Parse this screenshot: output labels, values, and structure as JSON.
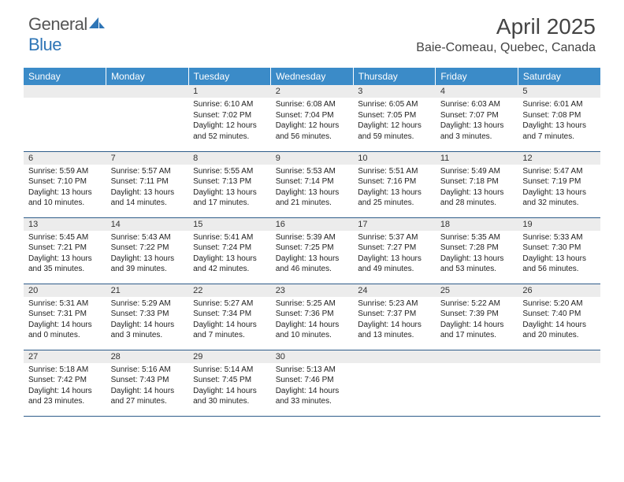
{
  "logo": {
    "text_general": "General",
    "text_blue": "Blue"
  },
  "header": {
    "month_title": "April 2025",
    "location": "Baie-Comeau, Quebec, Canada"
  },
  "colors": {
    "header_bar": "#3b8bc8",
    "header_text": "#ffffff",
    "day_num_bg": "#ececec",
    "border": "#2e5c8a",
    "logo_blue": "#2e75b6",
    "text_gray": "#555555"
  },
  "weekdays": [
    "Sunday",
    "Monday",
    "Tuesday",
    "Wednesday",
    "Thursday",
    "Friday",
    "Saturday"
  ],
  "weeks": [
    [
      {
        "empty": true
      },
      {
        "empty": true
      },
      {
        "num": "1",
        "sunrise": "Sunrise: 6:10 AM",
        "sunset": "Sunset: 7:02 PM",
        "daylight": "Daylight: 12 hours and 52 minutes."
      },
      {
        "num": "2",
        "sunrise": "Sunrise: 6:08 AM",
        "sunset": "Sunset: 7:04 PM",
        "daylight": "Daylight: 12 hours and 56 minutes."
      },
      {
        "num": "3",
        "sunrise": "Sunrise: 6:05 AM",
        "sunset": "Sunset: 7:05 PM",
        "daylight": "Daylight: 12 hours and 59 minutes."
      },
      {
        "num": "4",
        "sunrise": "Sunrise: 6:03 AM",
        "sunset": "Sunset: 7:07 PM",
        "daylight": "Daylight: 13 hours and 3 minutes."
      },
      {
        "num": "5",
        "sunrise": "Sunrise: 6:01 AM",
        "sunset": "Sunset: 7:08 PM",
        "daylight": "Daylight: 13 hours and 7 minutes."
      }
    ],
    [
      {
        "num": "6",
        "sunrise": "Sunrise: 5:59 AM",
        "sunset": "Sunset: 7:10 PM",
        "daylight": "Daylight: 13 hours and 10 minutes."
      },
      {
        "num": "7",
        "sunrise": "Sunrise: 5:57 AM",
        "sunset": "Sunset: 7:11 PM",
        "daylight": "Daylight: 13 hours and 14 minutes."
      },
      {
        "num": "8",
        "sunrise": "Sunrise: 5:55 AM",
        "sunset": "Sunset: 7:13 PM",
        "daylight": "Daylight: 13 hours and 17 minutes."
      },
      {
        "num": "9",
        "sunrise": "Sunrise: 5:53 AM",
        "sunset": "Sunset: 7:14 PM",
        "daylight": "Daylight: 13 hours and 21 minutes."
      },
      {
        "num": "10",
        "sunrise": "Sunrise: 5:51 AM",
        "sunset": "Sunset: 7:16 PM",
        "daylight": "Daylight: 13 hours and 25 minutes."
      },
      {
        "num": "11",
        "sunrise": "Sunrise: 5:49 AM",
        "sunset": "Sunset: 7:18 PM",
        "daylight": "Daylight: 13 hours and 28 minutes."
      },
      {
        "num": "12",
        "sunrise": "Sunrise: 5:47 AM",
        "sunset": "Sunset: 7:19 PM",
        "daylight": "Daylight: 13 hours and 32 minutes."
      }
    ],
    [
      {
        "num": "13",
        "sunrise": "Sunrise: 5:45 AM",
        "sunset": "Sunset: 7:21 PM",
        "daylight": "Daylight: 13 hours and 35 minutes."
      },
      {
        "num": "14",
        "sunrise": "Sunrise: 5:43 AM",
        "sunset": "Sunset: 7:22 PM",
        "daylight": "Daylight: 13 hours and 39 minutes."
      },
      {
        "num": "15",
        "sunrise": "Sunrise: 5:41 AM",
        "sunset": "Sunset: 7:24 PM",
        "daylight": "Daylight: 13 hours and 42 minutes."
      },
      {
        "num": "16",
        "sunrise": "Sunrise: 5:39 AM",
        "sunset": "Sunset: 7:25 PM",
        "daylight": "Daylight: 13 hours and 46 minutes."
      },
      {
        "num": "17",
        "sunrise": "Sunrise: 5:37 AM",
        "sunset": "Sunset: 7:27 PM",
        "daylight": "Daylight: 13 hours and 49 minutes."
      },
      {
        "num": "18",
        "sunrise": "Sunrise: 5:35 AM",
        "sunset": "Sunset: 7:28 PM",
        "daylight": "Daylight: 13 hours and 53 minutes."
      },
      {
        "num": "19",
        "sunrise": "Sunrise: 5:33 AM",
        "sunset": "Sunset: 7:30 PM",
        "daylight": "Daylight: 13 hours and 56 minutes."
      }
    ],
    [
      {
        "num": "20",
        "sunrise": "Sunrise: 5:31 AM",
        "sunset": "Sunset: 7:31 PM",
        "daylight": "Daylight: 14 hours and 0 minutes."
      },
      {
        "num": "21",
        "sunrise": "Sunrise: 5:29 AM",
        "sunset": "Sunset: 7:33 PM",
        "daylight": "Daylight: 14 hours and 3 minutes."
      },
      {
        "num": "22",
        "sunrise": "Sunrise: 5:27 AM",
        "sunset": "Sunset: 7:34 PM",
        "daylight": "Daylight: 14 hours and 7 minutes."
      },
      {
        "num": "23",
        "sunrise": "Sunrise: 5:25 AM",
        "sunset": "Sunset: 7:36 PM",
        "daylight": "Daylight: 14 hours and 10 minutes."
      },
      {
        "num": "24",
        "sunrise": "Sunrise: 5:23 AM",
        "sunset": "Sunset: 7:37 PM",
        "daylight": "Daylight: 14 hours and 13 minutes."
      },
      {
        "num": "25",
        "sunrise": "Sunrise: 5:22 AM",
        "sunset": "Sunset: 7:39 PM",
        "daylight": "Daylight: 14 hours and 17 minutes."
      },
      {
        "num": "26",
        "sunrise": "Sunrise: 5:20 AM",
        "sunset": "Sunset: 7:40 PM",
        "daylight": "Daylight: 14 hours and 20 minutes."
      }
    ],
    [
      {
        "num": "27",
        "sunrise": "Sunrise: 5:18 AM",
        "sunset": "Sunset: 7:42 PM",
        "daylight": "Daylight: 14 hours and 23 minutes."
      },
      {
        "num": "28",
        "sunrise": "Sunrise: 5:16 AM",
        "sunset": "Sunset: 7:43 PM",
        "daylight": "Daylight: 14 hours and 27 minutes."
      },
      {
        "num": "29",
        "sunrise": "Sunrise: 5:14 AM",
        "sunset": "Sunset: 7:45 PM",
        "daylight": "Daylight: 14 hours and 30 minutes."
      },
      {
        "num": "30",
        "sunrise": "Sunrise: 5:13 AM",
        "sunset": "Sunset: 7:46 PM",
        "daylight": "Daylight: 14 hours and 33 minutes."
      },
      {
        "empty": true
      },
      {
        "empty": true
      },
      {
        "empty": true
      }
    ]
  ]
}
